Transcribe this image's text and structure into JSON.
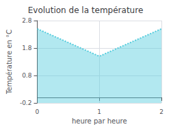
{
  "chart_data": {
    "type": "area",
    "title": "Evolution de la température",
    "xlabel": "heure par heure",
    "ylabel": "Température en °C",
    "x": [
      0,
      1,
      2
    ],
    "values": [
      2.5,
      1.5,
      2.5
    ],
    "color": "#55ccdd",
    "line_style": "dotted",
    "xlim": [
      0,
      2
    ],
    "xticks": [
      0,
      1,
      2
    ],
    "ylim": [
      -0.2,
      2.8
    ],
    "yticks": [
      -0.2,
      0.8,
      1.8,
      2.8
    ],
    "grid": true
  }
}
